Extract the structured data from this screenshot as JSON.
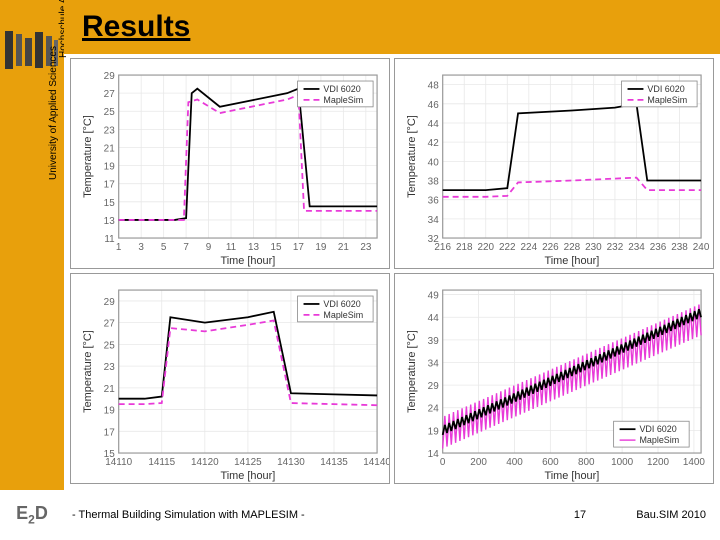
{
  "sidebar": {
    "institution_top": "Hochschule Augsburg",
    "institution_bottom": "University of Applied Sciences"
  },
  "header": {
    "title": "Results"
  },
  "footer": {
    "logo": "E2D",
    "subtitle": "- Thermal Building Simulation with MAPLESIM -",
    "page": "17",
    "conference": "Bau.SIM 2010"
  },
  "chart1": {
    "type": "line",
    "xlabel": "Time [hour]",
    "ylabel": "Temperature [°C]",
    "xlim": [
      1,
      24
    ],
    "xtick_step": 2,
    "ylim": [
      11,
      29
    ],
    "ytick_step": 2,
    "legend": [
      "VDI 6020",
      "MapleSim"
    ],
    "series1": [
      [
        1,
        13
      ],
      [
        2,
        13
      ],
      [
        4,
        13
      ],
      [
        6,
        13
      ],
      [
        7,
        13.2
      ],
      [
        7.5,
        27
      ],
      [
        8,
        27.5
      ],
      [
        10,
        25.5
      ],
      [
        12,
        26
      ],
      [
        16,
        27
      ],
      [
        17,
        27.5
      ],
      [
        18,
        14.5
      ],
      [
        20,
        14.5
      ],
      [
        24,
        14.5
      ]
    ],
    "series2": [
      [
        1,
        13
      ],
      [
        2,
        13
      ],
      [
        4,
        13
      ],
      [
        6,
        13
      ],
      [
        6.8,
        13
      ],
      [
        7.2,
        26
      ],
      [
        8,
        26.3
      ],
      [
        10,
        24.8
      ],
      [
        12,
        25.3
      ],
      [
        16,
        26.3
      ],
      [
        17,
        26.8
      ],
      [
        17.5,
        14
      ],
      [
        20,
        14
      ],
      [
        24,
        14
      ]
    ],
    "colors": {
      "s1": "#000000",
      "s2": "#e83ad8"
    }
  },
  "chart2": {
    "type": "line",
    "xlabel": "Time [hour]",
    "ylabel": "Temperature [°C]",
    "xlim": [
      216,
      240
    ],
    "xtick_step": 2,
    "ylim": [
      32,
      49
    ],
    "ytick_step": 2,
    "legend": [
      "VDI 6020",
      "MapleSim"
    ],
    "series1": [
      [
        216,
        37
      ],
      [
        218,
        37
      ],
      [
        220,
        37
      ],
      [
        222,
        37.2
      ],
      [
        223,
        45
      ],
      [
        228,
        45.3
      ],
      [
        232,
        45.6
      ],
      [
        234,
        46
      ],
      [
        235,
        38
      ],
      [
        240,
        38
      ]
    ],
    "series2": [
      [
        216,
        36.3
      ],
      [
        218,
        36.3
      ],
      [
        220,
        36.3
      ],
      [
        222,
        36.4
      ],
      [
        223,
        37.8
      ],
      [
        228,
        38
      ],
      [
        232,
        38.2
      ],
      [
        234,
        38.3
      ],
      [
        235,
        37
      ],
      [
        240,
        37
      ]
    ],
    "colors": {
      "s1": "#000000",
      "s2": "#e83ad8"
    }
  },
  "chart3": {
    "type": "line",
    "xlabel": "Time [hour]",
    "ylabel": "Temperature [°C]",
    "xlim": [
      14110,
      14140
    ],
    "xtick_step": 5,
    "ylim": [
      15,
      30
    ],
    "ytick_step": 2,
    "legend": [
      "VDI 6020",
      "MapleSim"
    ],
    "series1": [
      [
        14110,
        20
      ],
      [
        14113,
        20
      ],
      [
        14115,
        20.2
      ],
      [
        14116,
        27.5
      ],
      [
        14120,
        27
      ],
      [
        14125,
        27.5
      ],
      [
        14128,
        28
      ],
      [
        14130,
        20.5
      ],
      [
        14135,
        20.4
      ],
      [
        14140,
        20.3
      ]
    ],
    "series2": [
      [
        14110,
        19.5
      ],
      [
        14113,
        19.5
      ],
      [
        14115,
        19.6
      ],
      [
        14116,
        26.5
      ],
      [
        14120,
        26.2
      ],
      [
        14125,
        26.8
      ],
      [
        14128,
        27.2
      ],
      [
        14130,
        19.6
      ],
      [
        14135,
        19.5
      ],
      [
        14140,
        19.4
      ]
    ],
    "colors": {
      "s1": "#000000",
      "s2": "#e83ad8"
    }
  },
  "chart4": {
    "type": "line",
    "xlabel": "Time [hour]",
    "ylabel": "Temperature [°C]",
    "xlim": [
      0,
      1440
    ],
    "xtick_step": 200,
    "ylim": [
      14,
      50
    ],
    "ytick_step": 5,
    "legend": [
      "VDI 6020",
      "MapleSim"
    ],
    "oscillation": {
      "periods": 60,
      "s1_env": [
        [
          0,
          18,
          20
        ],
        [
          1440,
          44,
          46
        ]
      ],
      "s2_env": [
        [
          0,
          15,
          22
        ],
        [
          1440,
          40,
          47
        ]
      ]
    },
    "colors": {
      "s1": "#000000",
      "s2": "#e83ad8"
    }
  }
}
